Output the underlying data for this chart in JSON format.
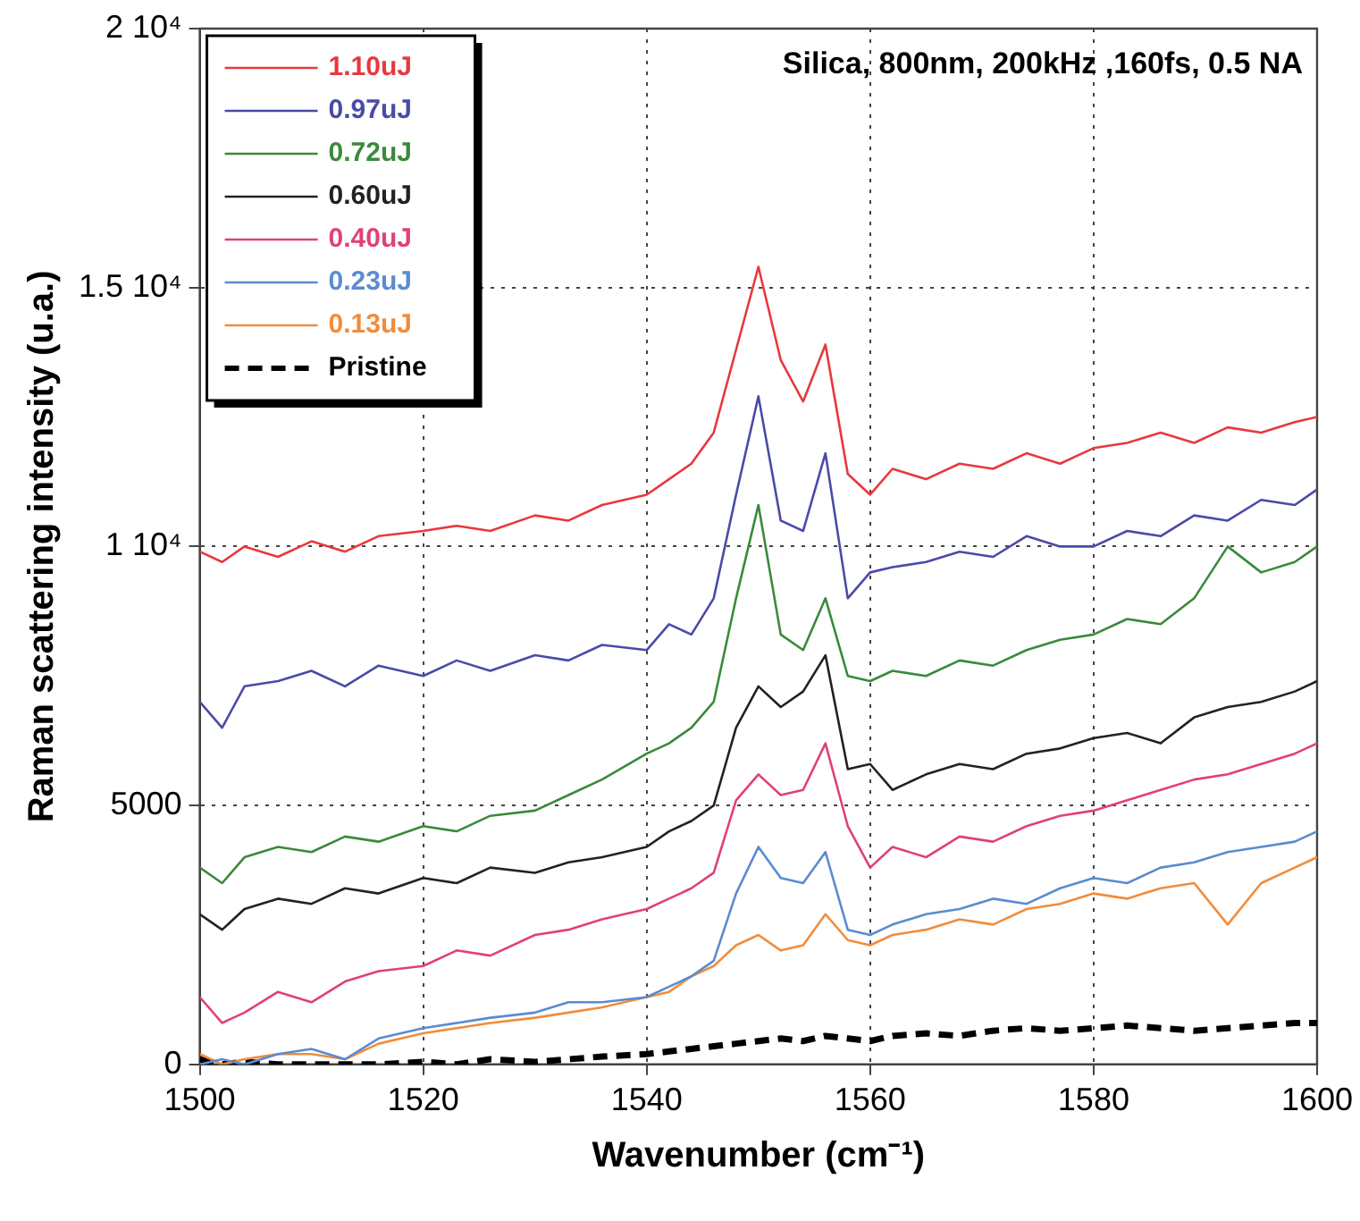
{
  "chart_data": {
    "type": "line",
    "xlabel": "Wavenumber (cm⁻¹)",
    "ylabel": "Raman scattering intensity (u.a.)",
    "annotations": [
      "Silica, 800nm, 200kHz ,160fs, 0.5 NA"
    ],
    "x": [
      1500,
      1502,
      1504,
      1507,
      1510,
      1513,
      1516,
      1520,
      1523,
      1526,
      1530,
      1533,
      1536,
      1540,
      1542,
      1544,
      1546,
      1548,
      1550,
      1552,
      1554,
      1556,
      1558,
      1560,
      1562,
      1565,
      1568,
      1571,
      1574,
      1577,
      1580,
      1583,
      1586,
      1589,
      1592,
      1595,
      1598,
      1600
    ],
    "xlim": [
      1500,
      1600
    ],
    "xticks": [
      1500,
      1520,
      1540,
      1560,
      1580,
      1600
    ],
    "ylim": [
      0,
      20000
    ],
    "yticks": [
      0,
      5000,
      {
        "value": 10000,
        "label": "1 10⁴"
      },
      {
        "value": 15000,
        "label": "1.5 10⁴"
      },
      {
        "value": 20000,
        "label": "2 10⁴"
      }
    ],
    "grid": true,
    "legend": "top left",
    "marker": "none",
    "series": [
      {
        "name": "1.10uJ",
        "color": "#e8383d",
        "values": [
          9900,
          9700,
          10000,
          9800,
          10100,
          9900,
          10200,
          10300,
          10400,
          10300,
          10600,
          10500,
          10800,
          11000,
          11300,
          11600,
          12200,
          13800,
          15400,
          13600,
          12800,
          13900,
          11400,
          11000,
          11500,
          11300,
          11600,
          11500,
          11800,
          11600,
          11900,
          12000,
          12200,
          12000,
          12300,
          12200,
          12400,
          12500
        ]
      },
      {
        "name": "0.97uJ",
        "color": "#4a4aa8",
        "values": [
          7000,
          6500,
          7300,
          7400,
          7600,
          7300,
          7700,
          7500,
          7800,
          7600,
          7900,
          7800,
          8100,
          8000,
          8500,
          8300,
          9000,
          11000,
          12900,
          10500,
          10300,
          11800,
          9000,
          9500,
          9600,
          9700,
          9900,
          9800,
          10200,
          10000,
          10000,
          10300,
          10200,
          10600,
          10500,
          10900,
          10800,
          11100
        ]
      },
      {
        "name": "0.72uJ",
        "color": "#3a8a3a",
        "values": [
          3800,
          3500,
          4000,
          4200,
          4100,
          4400,
          4300,
          4600,
          4500,
          4800,
          4900,
          5200,
          5500,
          6000,
          6200,
          6500,
          7000,
          9000,
          10800,
          8300,
          8000,
          9000,
          7500,
          7400,
          7600,
          7500,
          7800,
          7700,
          8000,
          8200,
          8300,
          8600,
          8500,
          9000,
          10000,
          9500,
          9700,
          10000
        ]
      },
      {
        "name": "0.60uJ",
        "color": "#222222",
        "values": [
          2900,
          2600,
          3000,
          3200,
          3100,
          3400,
          3300,
          3600,
          3500,
          3800,
          3700,
          3900,
          4000,
          4200,
          4500,
          4700,
          5000,
          6500,
          7300,
          6900,
          7200,
          7900,
          5700,
          5800,
          5300,
          5600,
          5800,
          5700,
          6000,
          6100,
          6300,
          6400,
          6200,
          6700,
          6900,
          7000,
          7200,
          7400
        ]
      },
      {
        "name": "0.40uJ",
        "color": "#e0407a",
        "values": [
          1300,
          800,
          1000,
          1400,
          1200,
          1600,
          1800,
          1900,
          2200,
          2100,
          2500,
          2600,
          2800,
          3000,
          3200,
          3400,
          3700,
          5100,
          5600,
          5200,
          5300,
          6200,
          4600,
          3800,
          4200,
          4000,
          4400,
          4300,
          4600,
          4800,
          4900,
          5100,
          5300,
          5500,
          5600,
          5800,
          6000,
          6200
        ]
      },
      {
        "name": "0.23uJ",
        "color": "#5b8bd0",
        "values": [
          0,
          100,
          0,
          200,
          300,
          100,
          500,
          700,
          800,
          900,
          1000,
          1200,
          1200,
          1300,
          1500,
          1700,
          2000,
          3300,
          4200,
          3600,
          3500,
          4100,
          2600,
          2500,
          2700,
          2900,
          3000,
          3200,
          3100,
          3400,
          3600,
          3500,
          3800,
          3900,
          4100,
          4200,
          4300,
          4500
        ]
      },
      {
        "name": "0.13uJ",
        "color": "#f08c3c",
        "values": [
          200,
          0,
          100,
          200,
          200,
          100,
          400,
          600,
          700,
          800,
          900,
          1000,
          1100,
          1300,
          1400,
          1700,
          1900,
          2300,
          2500,
          2200,
          2300,
          2900,
          2400,
          2300,
          2500,
          2600,
          2800,
          2700,
          3000,
          3100,
          3300,
          3200,
          3400,
          3500,
          2700,
          3500,
          3800,
          4000
        ]
      },
      {
        "name": "Pristine",
        "color": "#000000",
        "line_style": "dashed",
        "values": [
          100,
          0,
          50,
          0,
          0,
          0,
          0,
          50,
          0,
          100,
          50,
          100,
          150,
          200,
          250,
          300,
          350,
          400,
          450,
          500,
          450,
          550,
          500,
          450,
          550,
          600,
          550,
          650,
          700,
          650,
          700,
          750,
          700,
          650,
          700,
          750,
          800,
          800
        ]
      }
    ]
  }
}
